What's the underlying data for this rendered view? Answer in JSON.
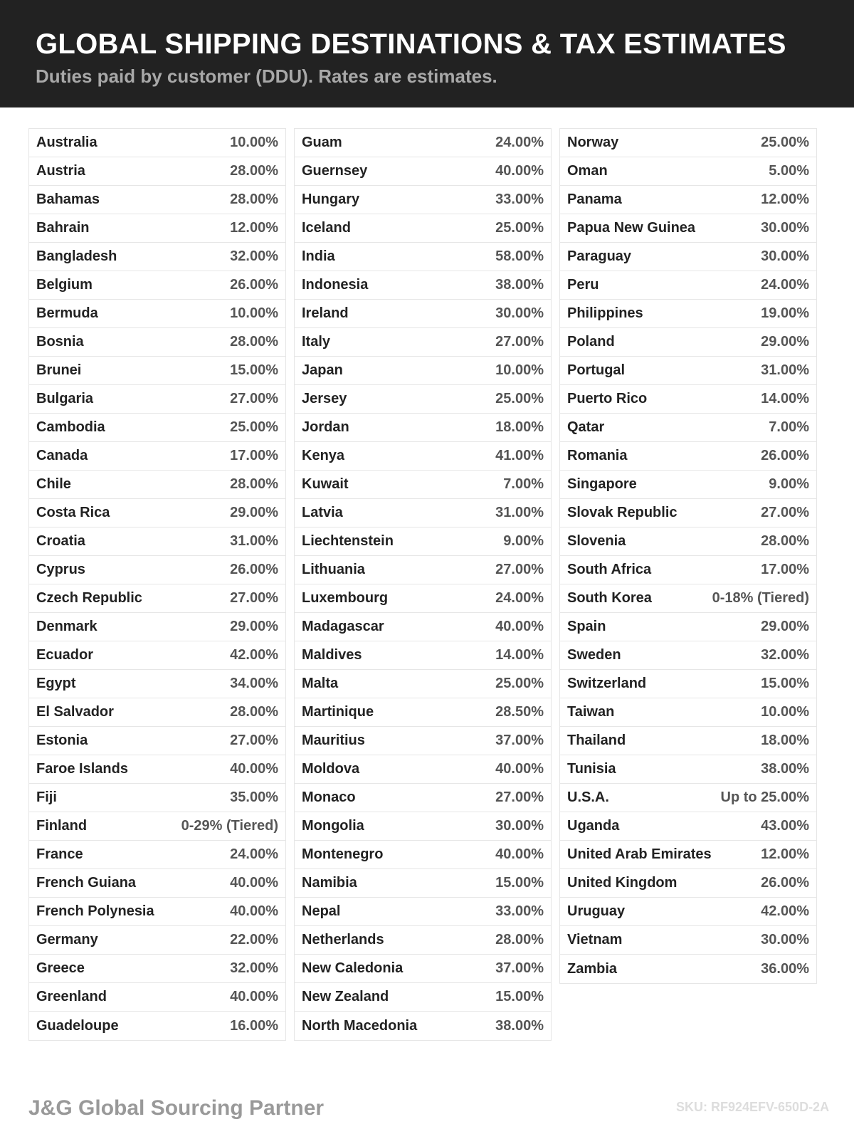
{
  "header": {
    "title": "GLOBAL SHIPPING DESTINATIONS & TAX ESTIMATES",
    "subtitle": "Duties paid by customer (DDU). Rates are estimates."
  },
  "columns": [
    [
      [
        "Australia",
        "10.00%"
      ],
      [
        "Austria",
        "28.00%"
      ],
      [
        "Bahamas",
        "28.00%"
      ],
      [
        "Bahrain",
        "12.00%"
      ],
      [
        "Bangladesh",
        "32.00%"
      ],
      [
        "Belgium",
        "26.00%"
      ],
      [
        "Bermuda",
        "10.00%"
      ],
      [
        "Bosnia",
        "28.00%"
      ],
      [
        "Brunei",
        "15.00%"
      ],
      [
        "Bulgaria",
        "27.00%"
      ],
      [
        "Cambodia",
        "25.00%"
      ],
      [
        "Canada",
        "17.00%"
      ],
      [
        "Chile",
        "28.00%"
      ],
      [
        "Costa Rica",
        "29.00%"
      ],
      [
        "Croatia",
        "31.00%"
      ],
      [
        "Cyprus",
        "26.00%"
      ],
      [
        "Czech Republic",
        "27.00%"
      ],
      [
        "Denmark",
        "29.00%"
      ],
      [
        "Ecuador",
        "42.00%"
      ],
      [
        "Egypt",
        "34.00%"
      ],
      [
        "El Salvador",
        "28.00%"
      ],
      [
        "Estonia",
        "27.00%"
      ],
      [
        "Faroe Islands",
        "40.00%"
      ],
      [
        "Fiji",
        "35.00%"
      ],
      [
        "Finland",
        "0-29% (Tiered)"
      ],
      [
        "France",
        "24.00%"
      ],
      [
        "French Guiana",
        "40.00%"
      ],
      [
        "French Polynesia",
        "40.00%"
      ],
      [
        "Germany",
        "22.00%"
      ],
      [
        "Greece",
        "32.00%"
      ],
      [
        "Greenland",
        "40.00%"
      ],
      [
        "Guadeloupe",
        "16.00%"
      ]
    ],
    [
      [
        "Guam",
        "24.00%"
      ],
      [
        "Guernsey",
        "40.00%"
      ],
      [
        "Hungary",
        "33.00%"
      ],
      [
        "Iceland",
        "25.00%"
      ],
      [
        "India",
        "58.00%"
      ],
      [
        "Indonesia",
        "38.00%"
      ],
      [
        "Ireland",
        "30.00%"
      ],
      [
        "Italy",
        "27.00%"
      ],
      [
        "Japan",
        "10.00%"
      ],
      [
        "Jersey",
        "25.00%"
      ],
      [
        "Jordan",
        "18.00%"
      ],
      [
        "Kenya",
        "41.00%"
      ],
      [
        "Kuwait",
        "7.00%"
      ],
      [
        "Latvia",
        "31.00%"
      ],
      [
        "Liechtenstein",
        "9.00%"
      ],
      [
        "Lithuania",
        "27.00%"
      ],
      [
        "Luxembourg",
        "24.00%"
      ],
      [
        "Madagascar",
        "40.00%"
      ],
      [
        "Maldives",
        "14.00%"
      ],
      [
        "Malta",
        "25.00%"
      ],
      [
        "Martinique",
        "28.50%"
      ],
      [
        "Mauritius",
        "37.00%"
      ],
      [
        "Moldova",
        "40.00%"
      ],
      [
        "Monaco",
        "27.00%"
      ],
      [
        "Mongolia",
        "30.00%"
      ],
      [
        "Montenegro",
        "40.00%"
      ],
      [
        "Namibia",
        "15.00%"
      ],
      [
        "Nepal",
        "33.00%"
      ],
      [
        "Netherlands",
        "28.00%"
      ],
      [
        "New Caledonia",
        "37.00%"
      ],
      [
        "New Zealand",
        "15.00%"
      ],
      [
        "North Macedonia",
        "38.00%"
      ]
    ],
    [
      [
        "Norway",
        "25.00%"
      ],
      [
        "Oman",
        "5.00%"
      ],
      [
        "Panama",
        "12.00%"
      ],
      [
        "Papua New Guinea",
        "30.00%"
      ],
      [
        "Paraguay",
        "30.00%"
      ],
      [
        "Peru",
        "24.00%"
      ],
      [
        "Philippines",
        "19.00%"
      ],
      [
        "Poland",
        "29.00%"
      ],
      [
        "Portugal",
        "31.00%"
      ],
      [
        "Puerto Rico",
        "14.00%"
      ],
      [
        "Qatar",
        "7.00%"
      ],
      [
        "Romania",
        "26.00%"
      ],
      [
        "Singapore",
        "9.00%"
      ],
      [
        "Slovak Republic",
        "27.00%"
      ],
      [
        "Slovenia",
        "28.00%"
      ],
      [
        "South Africa",
        "17.00%"
      ],
      [
        "South Korea",
        "0-18% (Tiered)"
      ],
      [
        "Spain",
        "29.00%"
      ],
      [
        "Sweden",
        "32.00%"
      ],
      [
        "Switzerland",
        "15.00%"
      ],
      [
        "Taiwan",
        "10.00%"
      ],
      [
        "Thailand",
        "18.00%"
      ],
      [
        "Tunisia",
        "38.00%"
      ],
      [
        "U.S.A.",
        "Up to 25.00%"
      ],
      [
        "Uganda",
        "43.00%"
      ],
      [
        "United Arab Emirates",
        "12.00%"
      ],
      [
        "United Kingdom",
        "26.00%"
      ],
      [
        "Uruguay",
        "42.00%"
      ],
      [
        "Vietnam",
        "30.00%"
      ],
      [
        "Zambia",
        "36.00%"
      ]
    ]
  ],
  "footer": {
    "brand": "J&G Global Sourcing Partner",
    "sku": "SKU: RF924EFV-650D-2A"
  }
}
